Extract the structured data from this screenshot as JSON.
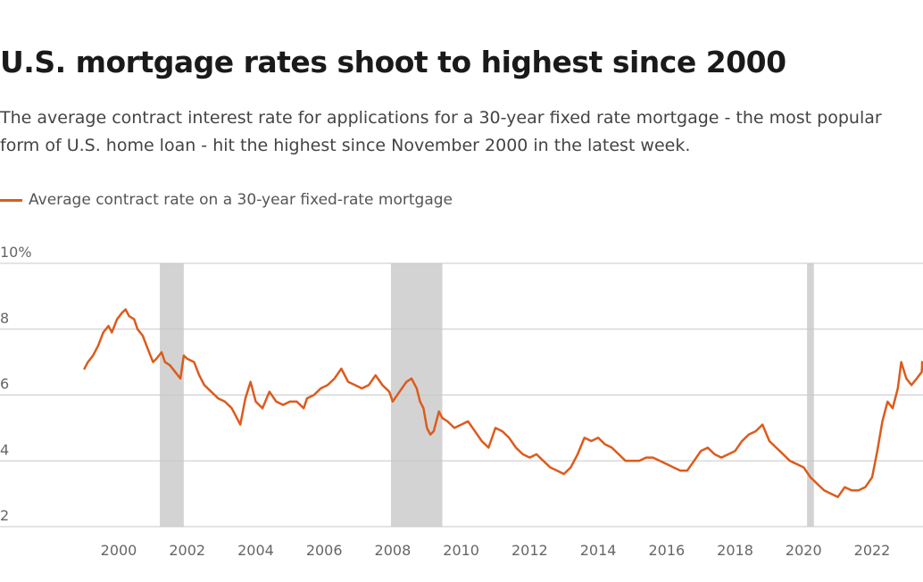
{
  "colors": {
    "series": "#dc5b1c",
    "recession_band": "#d3d3d3",
    "gridline": "#c8c8c8"
  },
  "chart_data": {
    "type": "line",
    "title": "U.S. mortgage rates shoot to highest since 2000",
    "subtitle_lines": [
      "The average contract interest rate for applications for a 30-year fixed rate mortgage - the most popular",
      "form of U.S. home loan - hit the highest since November 2000 in the latest week."
    ],
    "legend": [
      {
        "label": "Average contract rate on a 30-year fixed-rate mortgage",
        "color": "#dc5b1c"
      }
    ],
    "legend_position": "top-left",
    "grid": true,
    "xlim": [
      1997.7,
      2023.7
    ],
    "ylim": [
      2,
      10
    ],
    "x_ticks": [
      {
        "value": 2000,
        "label": "2000"
      },
      {
        "value": 2002,
        "label": "2002"
      },
      {
        "value": 2004,
        "label": "2004"
      },
      {
        "value": 2006,
        "label": "2006"
      },
      {
        "value": 2008,
        "label": "2008"
      },
      {
        "value": 2010,
        "label": "2010"
      },
      {
        "value": 2012,
        "label": "2012"
      },
      {
        "value": 2014,
        "label": "2014"
      },
      {
        "value": 2016,
        "label": "2016"
      },
      {
        "value": 2018,
        "label": "2018"
      },
      {
        "value": 2020,
        "label": "2020"
      },
      {
        "value": 2022,
        "label": "2022"
      }
    ],
    "y_ticks": [
      {
        "value": 10,
        "label": "10%"
      },
      {
        "value": 8,
        "label": "8"
      },
      {
        "value": 6,
        "label": "6"
      },
      {
        "value": 4,
        "label": "4"
      },
      {
        "value": 2,
        "label": "2"
      }
    ],
    "shaded_periods": [
      {
        "start": 2001.2,
        "end": 2001.9
      },
      {
        "start": 2007.95,
        "end": 2009.45
      },
      {
        "start": 2020.1,
        "end": 2020.3
      }
    ],
    "series": [
      {
        "name": "Average contract rate on a 30-year fixed-rate mortgage",
        "x": [
          1999.0,
          1999.1,
          1999.25,
          1999.4,
          1999.55,
          1999.7,
          1999.8,
          1999.95,
          2000.1,
          2000.2,
          2000.3,
          2000.45,
          2000.55,
          2000.7,
          2000.85,
          2001.0,
          2001.1,
          2001.25,
          2001.35,
          2001.5,
          2001.65,
          2001.8,
          2001.9,
          2002.0,
          2002.2,
          2002.35,
          2002.5,
          2002.7,
          2002.9,
          2003.1,
          2003.3,
          2003.45,
          2003.55,
          2003.7,
          2003.85,
          2004.0,
          2004.2,
          2004.4,
          2004.6,
          2004.8,
          2005.0,
          2005.2,
          2005.4,
          2005.5,
          2005.7,
          2005.9,
          2006.1,
          2006.3,
          2006.5,
          2006.7,
          2006.9,
          2007.1,
          2007.3,
          2007.5,
          2007.7,
          2007.9,
          2008.0,
          2008.2,
          2008.4,
          2008.55,
          2008.7,
          2008.8,
          2008.9,
          2009.0,
          2009.1,
          2009.2,
          2009.35,
          2009.45,
          2009.6,
          2009.8,
          2010.0,
          2010.2,
          2010.4,
          2010.6,
          2010.8,
          2011.0,
          2011.2,
          2011.4,
          2011.6,
          2011.8,
          2012.0,
          2012.2,
          2012.4,
          2012.6,
          2012.8,
          2013.0,
          2013.2,
          2013.4,
          2013.6,
          2013.8,
          2014.0,
          2014.2,
          2014.4,
          2014.6,
          2014.8,
          2015.0,
          2015.2,
          2015.4,
          2015.6,
          2015.8,
          2016.0,
          2016.2,
          2016.4,
          2016.6,
          2016.8,
          2017.0,
          2017.2,
          2017.4,
          2017.6,
          2017.8,
          2018.0,
          2018.2,
          2018.4,
          2018.6,
          2018.8,
          2019.0,
          2019.2,
          2019.4,
          2019.6,
          2019.8,
          2020.0,
          2020.2,
          2020.4,
          2020.6,
          2020.8,
          2021.0,
          2021.2,
          2021.4,
          2021.6,
          2021.8,
          2022.0,
          2022.15,
          2022.3,
          2022.45,
          2022.6,
          2022.75,
          2022.85,
          2023.0,
          2023.15,
          2023.3,
          2023.45,
          2023.6,
          2023.7
        ],
        "y": [
          6.8,
          7.0,
          7.2,
          7.5,
          7.9,
          8.1,
          7.9,
          8.3,
          8.5,
          8.6,
          8.4,
          8.3,
          8.0,
          7.8,
          7.4,
          7.0,
          7.1,
          7.3,
          7.0,
          6.9,
          6.7,
          6.5,
          7.2,
          7.1,
          7.0,
          6.6,
          6.3,
          6.1,
          5.9,
          5.8,
          5.6,
          5.3,
          5.1,
          5.9,
          6.4,
          5.8,
          5.6,
          6.1,
          5.8,
          5.7,
          5.8,
          5.8,
          5.6,
          5.9,
          6.0,
          6.2,
          6.3,
          6.5,
          6.8,
          6.4,
          6.3,
          6.2,
          6.3,
          6.6,
          6.3,
          6.1,
          5.8,
          6.1,
          6.4,
          6.5,
          6.2,
          5.8,
          5.6,
          5.0,
          4.8,
          4.9,
          5.5,
          5.3,
          5.2,
          5.0,
          5.1,
          5.2,
          4.9,
          4.6,
          4.4,
          5.0,
          4.9,
          4.7,
          4.4,
          4.2,
          4.1,
          4.2,
          4.0,
          3.8,
          3.7,
          3.6,
          3.8,
          4.2,
          4.7,
          4.6,
          4.7,
          4.5,
          4.4,
          4.2,
          4.0,
          4.0,
          4.0,
          4.1,
          4.1,
          4.0,
          3.9,
          3.8,
          3.7,
          3.7,
          4.0,
          4.3,
          4.4,
          4.2,
          4.1,
          4.2,
          4.3,
          4.6,
          4.8,
          4.9,
          5.1,
          4.6,
          4.4,
          4.2,
          4.0,
          3.9,
          3.8,
          3.5,
          3.3,
          3.1,
          3.0,
          2.9,
          3.2,
          3.1,
          3.1,
          3.2,
          3.5,
          4.3,
          5.2,
          5.8,
          5.6,
          6.2,
          7.0,
          6.5,
          6.3,
          6.5,
          6.7,
          6.9,
          7.0
        ]
      }
    ]
  }
}
